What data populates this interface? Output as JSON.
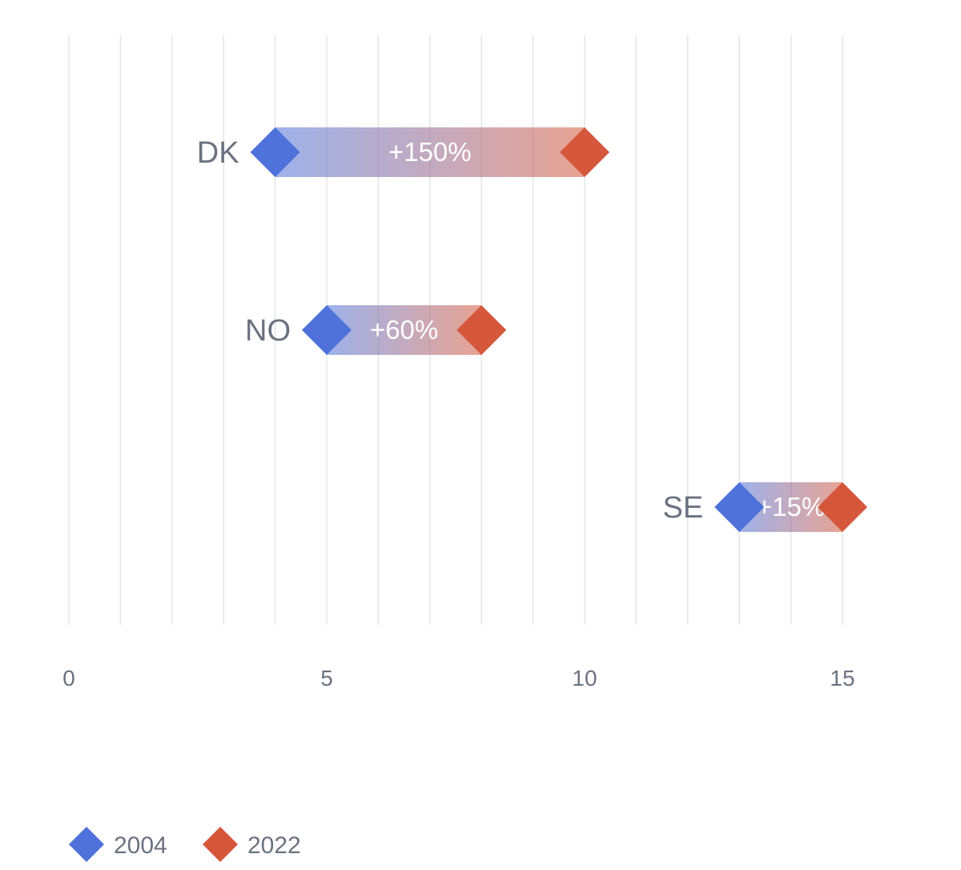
{
  "chart_data": {
    "type": "dumbbell",
    "xlim": [
      0,
      15
    ],
    "x_ticks": [
      0,
      5,
      10,
      15
    ],
    "x_tick_labels": [
      "0",
      "5",
      "10",
      "15"
    ],
    "grid_step": 1,
    "categories": [
      "DK",
      "NO",
      "SE"
    ],
    "series": [
      {
        "name": "2004",
        "values": [
          4,
          5,
          13
        ],
        "color": "#4e72d9"
      },
      {
        "name": "2022",
        "values": [
          10,
          8,
          15
        ],
        "color": "#d5573b"
      }
    ],
    "change_labels": [
      "+150%",
      "+60%",
      "+15%"
    ],
    "legend_position": "bottom-left"
  }
}
